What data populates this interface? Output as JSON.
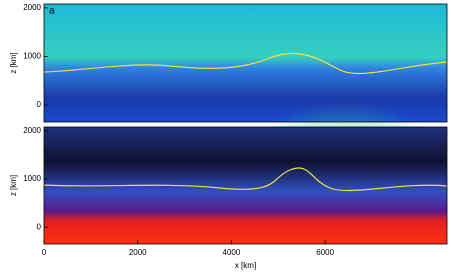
{
  "chart_data": [
    {
      "type": "heatmap",
      "panel_label": "a",
      "ylabel": "z [km]",
      "xlim": [
        0,
        8600
      ],
      "ylim": [
        -350,
        2080
      ],
      "yticks": [
        0,
        1000,
        2000
      ]
    },
    {
      "type": "heatmap",
      "ylabel": "z [km]",
      "xlabel": "x [km]",
      "xlim": [
        0,
        8600
      ],
      "ylim": [
        -350,
        2080
      ],
      "yticks": [
        0,
        1000,
        2000
      ],
      "xticks": [
        0,
        2000,
        4000,
        6000
      ]
    }
  ]
}
